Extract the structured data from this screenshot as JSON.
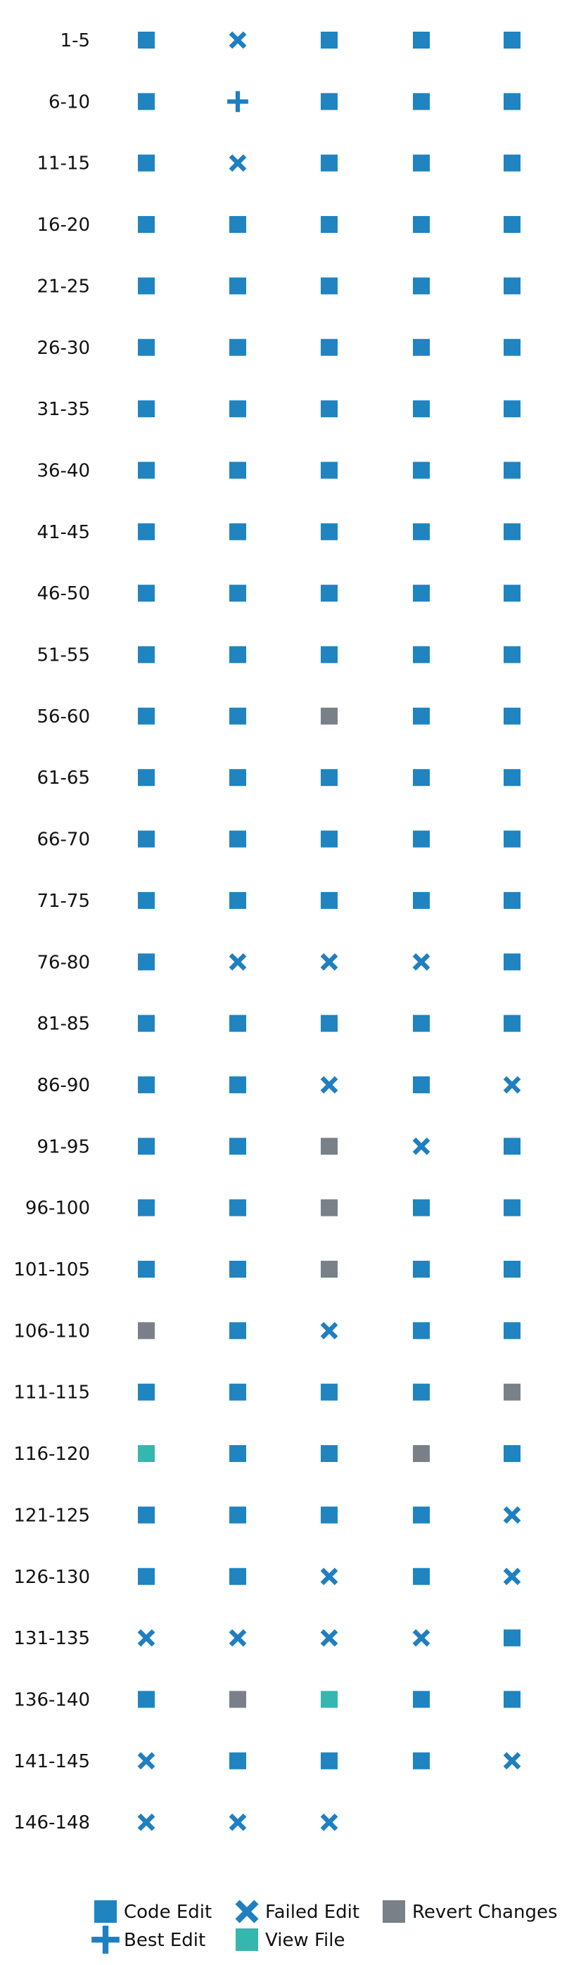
{
  "chart_data": {
    "type": "table",
    "title": "",
    "row_labels": [
      "1-5",
      "6-10",
      "11-15",
      "16-20",
      "21-25",
      "26-30",
      "31-35",
      "36-40",
      "41-45",
      "46-50",
      "51-55",
      "56-60",
      "61-65",
      "66-70",
      "71-75",
      "76-80",
      "81-85",
      "86-90",
      "91-95",
      "96-100",
      "101-105",
      "106-110",
      "111-115",
      "116-120",
      "121-125",
      "126-130",
      "131-135",
      "136-140",
      "141-145",
      "146-148"
    ],
    "cells": [
      [
        "code",
        "failed",
        "code",
        "code",
        "code"
      ],
      [
        "code",
        "best",
        "code",
        "code",
        "code"
      ],
      [
        "code",
        "failed",
        "code",
        "code",
        "code"
      ],
      [
        "code",
        "code",
        "code",
        "code",
        "code"
      ],
      [
        "code",
        "code",
        "code",
        "code",
        "code"
      ],
      [
        "code",
        "code",
        "code",
        "code",
        "code"
      ],
      [
        "code",
        "code",
        "code",
        "code",
        "code"
      ],
      [
        "code",
        "code",
        "code",
        "code",
        "code"
      ],
      [
        "code",
        "code",
        "code",
        "code",
        "code"
      ],
      [
        "code",
        "code",
        "code",
        "code",
        "code"
      ],
      [
        "code",
        "code",
        "code",
        "code",
        "code"
      ],
      [
        "code",
        "code",
        "revert",
        "code",
        "code"
      ],
      [
        "code",
        "code",
        "code",
        "code",
        "code"
      ],
      [
        "code",
        "code",
        "code",
        "code",
        "code"
      ],
      [
        "code",
        "code",
        "code",
        "code",
        "code"
      ],
      [
        "code",
        "failed",
        "failed",
        "failed",
        "code"
      ],
      [
        "code",
        "code",
        "code",
        "code",
        "code"
      ],
      [
        "code",
        "code",
        "failed",
        "code",
        "failed"
      ],
      [
        "code",
        "code",
        "revert",
        "failed",
        "code"
      ],
      [
        "code",
        "code",
        "revert",
        "code",
        "code"
      ],
      [
        "code",
        "code",
        "revert",
        "code",
        "code"
      ],
      [
        "revert",
        "code",
        "failed",
        "code",
        "code"
      ],
      [
        "code",
        "code",
        "code",
        "code",
        "revert"
      ],
      [
        "view",
        "code",
        "code",
        "revert",
        "code"
      ],
      [
        "code",
        "code",
        "code",
        "code",
        "failed"
      ],
      [
        "code",
        "code",
        "failed",
        "code",
        "failed"
      ],
      [
        "failed",
        "failed",
        "failed",
        "failed",
        "code"
      ],
      [
        "code",
        "revert",
        "view",
        "code",
        "code"
      ],
      [
        "failed",
        "code",
        "code",
        "code",
        "failed"
      ],
      [
        "failed",
        "failed",
        "failed"
      ]
    ],
    "legend": [
      {
        "key": "code",
        "label": "Code Edit",
        "marker": "square",
        "color": "#1f77b4"
      },
      {
        "key": "failed",
        "label": "Failed Edit",
        "marker": "x",
        "color": "#1f77b4"
      },
      {
        "key": "revert",
        "label": "Revert Changes",
        "marker": "square",
        "color": "#6b7580"
      },
      {
        "key": "best",
        "label": "Best Edit",
        "marker": "plus",
        "color": "#1f77b4"
      },
      {
        "key": "view",
        "label": "View File",
        "marker": "square",
        "color": "#2ab0a8"
      }
    ],
    "colors": {
      "code": "#1f84c0",
      "failed": "#1f7fc0",
      "best": "#1f7fc0",
      "revert": "#7a8088",
      "view": "#35b6ae"
    },
    "legend_placement": "bottom-center",
    "grid": false
  }
}
